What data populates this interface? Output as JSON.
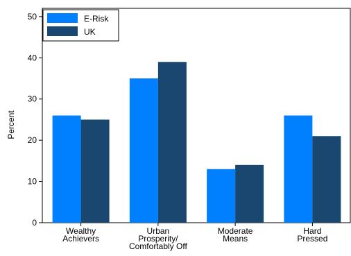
{
  "chart_data": {
    "type": "bar",
    "categories": [
      [
        "Wealthy",
        "Achievers"
      ],
      [
        "Urban",
        "Prosperity/",
        "Comfortably Off"
      ],
      [
        "Moderate",
        "Means"
      ],
      [
        "Hard",
        "Pressed"
      ]
    ],
    "series": [
      {
        "name": "E-Risk",
        "values": [
          26,
          35,
          13,
          26
        ],
        "color": "#0080ff"
      },
      {
        "name": "UK",
        "values": [
          25,
          39,
          14,
          21
        ],
        "color": "#1a476f"
      }
    ],
    "ylabel": "Percent",
    "xlabel": "",
    "title": "",
    "ylim": [
      0,
      52
    ],
    "yticks": [
      0,
      10,
      20,
      30,
      40,
      50
    ],
    "grid": false,
    "legend_position": "top-left"
  }
}
